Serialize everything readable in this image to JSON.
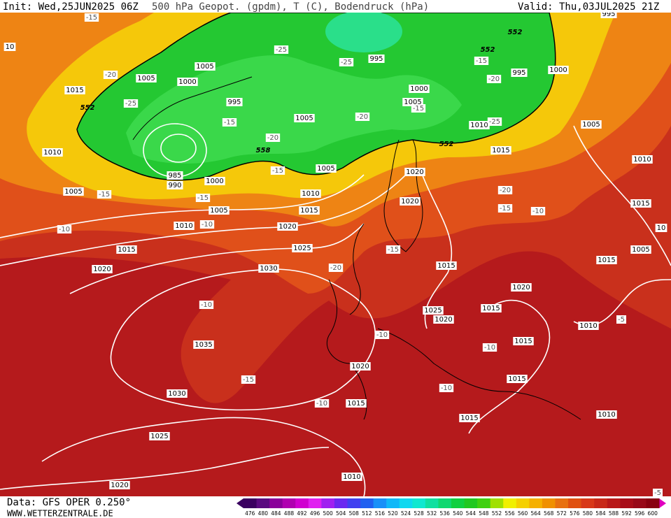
{
  "header": {
    "init": "Init: Wed,25JUN2025 06Z",
    "title": "500 hPa Geopot. (gpdm), T (C), Bodendruck (hPa)",
    "valid": "Valid: Thu,03JUL2025 21Z"
  },
  "footer": {
    "data": "Data: GFS OPER 0.250°",
    "site": "WWW.WETTERZENTRALE.DE"
  },
  "colorbar": {
    "labels": [
      476,
      480,
      484,
      488,
      492,
      496,
      500,
      504,
      508,
      512,
      516,
      520,
      524,
      528,
      532,
      536,
      540,
      544,
      548,
      552,
      556,
      560,
      564,
      568,
      572,
      576,
      580,
      584,
      588,
      592,
      596,
      600
    ],
    "colors": [
      "#3a0060",
      "#5a0a80",
      "#8a009a",
      "#b000b0",
      "#d000d0",
      "#e020f0",
      "#a020f0",
      "#6a28f0",
      "#4040f0",
      "#2060f0",
      "#1890f8",
      "#10b8f8",
      "#10d8f0",
      "#10e8d0",
      "#10e0a0",
      "#10d870",
      "#10d040",
      "#20c820",
      "#40d010",
      "#a0e000",
      "#f0f000",
      "#f5d000",
      "#f5b000",
      "#f09000",
      "#e87010",
      "#e05010",
      "#d83818",
      "#c82818",
      "#b81818",
      "#a80c18",
      "#980818",
      "#880010"
    ]
  },
  "isobar_labels": [
    1005,
    1005,
    1000,
    995,
    1015,
    1010,
    1005,
    985,
    990,
    1000,
    1005,
    1010,
    1015,
    1005,
    1010,
    1020,
    1015,
    1025,
    1020,
    1030,
    1035,
    1030,
    1025,
    1020,
    995,
    1000,
    1005,
    1005,
    995,
    1000,
    1010,
    1015,
    1005,
    1010,
    1020,
    1020,
    1015,
    1015,
    1005,
    1015,
    1020,
    1025,
    1020,
    1015,
    1010,
    1015,
    1020,
    1015,
    1015,
    1015,
    1010,
    1010,
    995,
    10,
    10
  ],
  "geopotential_labels": [
    552,
    552,
    552,
    558,
    552
  ],
  "temperature_labels": [
    -15,
    -20,
    -25,
    -25,
    -25,
    -15,
    -20,
    -20,
    -15,
    -15,
    -15,
    -10,
    -10,
    -15,
    -15,
    -20,
    -25,
    -20,
    -15,
    -10,
    -15,
    -20,
    -10,
    -10,
    -15,
    -10,
    -10,
    -10,
    -5,
    -5
  ]
}
